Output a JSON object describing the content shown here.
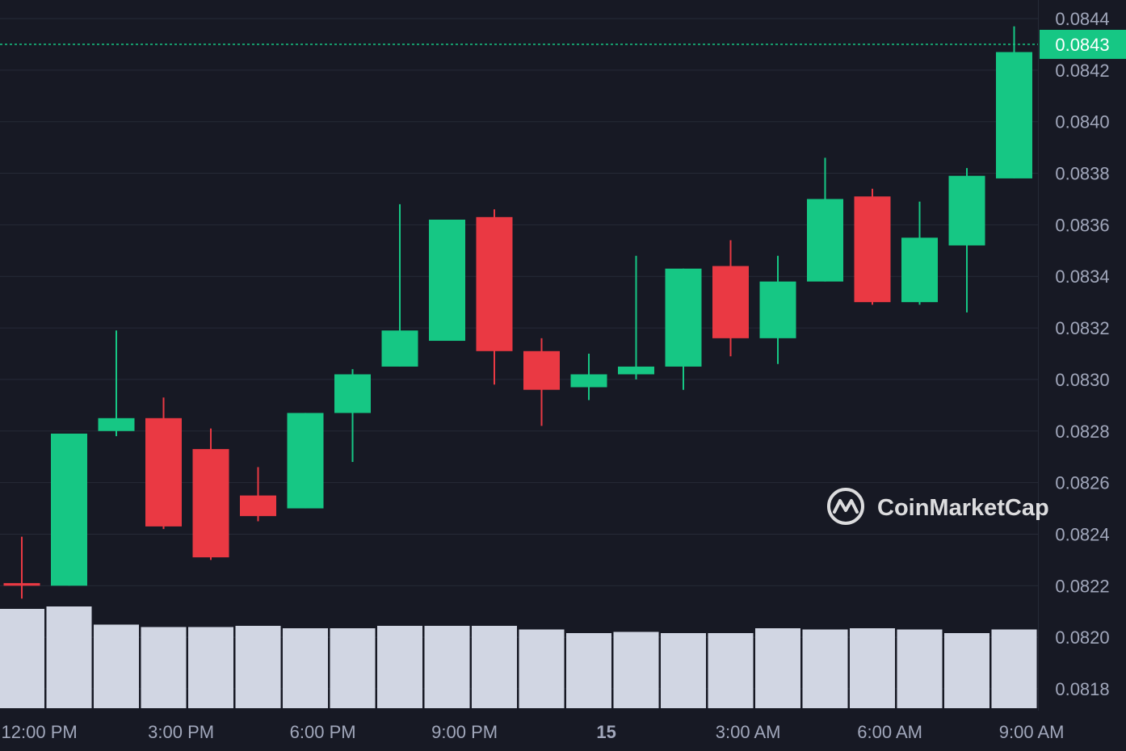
{
  "colors": {
    "background": "#171924",
    "grid": "#262a37",
    "up": "#16c784",
    "down": "#ea3943",
    "volume": "#d1d6e3",
    "axis_text": "#a1a7bb",
    "current_price_line": "#16c784"
  },
  "watermark": {
    "text": "CoinMarketCap",
    "icon": "coinmarketcap-logo-icon"
  },
  "current_price": {
    "label": "0.0843",
    "value": 0.0843
  },
  "chart_data": {
    "type": "candlestick",
    "title": "",
    "xlabel": "",
    "ylabel": "",
    "ylim": [
      0.0817,
      0.08446
    ],
    "y_ticks": [
      "0.0844",
      "0.0842",
      "0.0840",
      "0.0838",
      "0.0836",
      "0.0834",
      "0.0832",
      "0.0830",
      "0.0828",
      "0.0826",
      "0.0824",
      "0.0822",
      "0.0820",
      "0.0818"
    ],
    "x_ticks": [
      {
        "label": "12:00 PM",
        "bold": false,
        "at_candle": 0.37
      },
      {
        "label": "3:00 PM",
        "bold": false,
        "at_candle": 3.37
      },
      {
        "label": "6:00 PM",
        "bold": false,
        "at_candle": 6.37
      },
      {
        "label": "9:00 PM",
        "bold": false,
        "at_candle": 9.37
      },
      {
        "label": "15",
        "bold": true,
        "at_candle": 12.37
      },
      {
        "label": "3:00 AM",
        "bold": false,
        "at_candle": 15.37
      },
      {
        "label": "6:00 AM",
        "bold": false,
        "at_candle": 18.37
      },
      {
        "label": "9:00 AM",
        "bold": false,
        "at_candle": 21.37
      }
    ],
    "candles": [
      {
        "open": 0.08221,
        "high": 0.08239,
        "low": 0.08215,
        "close": 0.0822,
        "volume": 0.82
      },
      {
        "open": 0.0822,
        "high": 0.08279,
        "low": 0.0822,
        "close": 0.08279,
        "volume": 0.84
      },
      {
        "open": 0.0828,
        "high": 0.08319,
        "low": 0.08278,
        "close": 0.08285,
        "volume": 0.69
      },
      {
        "open": 0.08285,
        "high": 0.08293,
        "low": 0.08242,
        "close": 0.08243,
        "volume": 0.67
      },
      {
        "open": 0.08273,
        "high": 0.08281,
        "low": 0.0823,
        "close": 0.08231,
        "volume": 0.67
      },
      {
        "open": 0.08255,
        "high": 0.08266,
        "low": 0.08245,
        "close": 0.08247,
        "volume": 0.68
      },
      {
        "open": 0.0825,
        "high": 0.08287,
        "low": 0.0825,
        "close": 0.08287,
        "volume": 0.66
      },
      {
        "open": 0.08287,
        "high": 0.08304,
        "low": 0.08268,
        "close": 0.08302,
        "volume": 0.66
      },
      {
        "open": 0.08305,
        "high": 0.08368,
        "low": 0.08305,
        "close": 0.08319,
        "volume": 0.68
      },
      {
        "open": 0.08315,
        "high": 0.08362,
        "low": 0.08315,
        "close": 0.08362,
        "volume": 0.68
      },
      {
        "open": 0.08363,
        "high": 0.08366,
        "low": 0.08298,
        "close": 0.08311,
        "volume": 0.68
      },
      {
        "open": 0.08311,
        "high": 0.08316,
        "low": 0.08282,
        "close": 0.08296,
        "volume": 0.65
      },
      {
        "open": 0.08297,
        "high": 0.0831,
        "low": 0.08292,
        "close": 0.08302,
        "volume": 0.62
      },
      {
        "open": 0.08302,
        "high": 0.08348,
        "low": 0.083,
        "close": 0.08305,
        "volume": 0.63
      },
      {
        "open": 0.08305,
        "high": 0.08343,
        "low": 0.08296,
        "close": 0.08343,
        "volume": 0.62
      },
      {
        "open": 0.08344,
        "high": 0.08354,
        "low": 0.08309,
        "close": 0.08316,
        "volume": 0.62
      },
      {
        "open": 0.08316,
        "high": 0.08348,
        "low": 0.08306,
        "close": 0.08338,
        "volume": 0.66
      },
      {
        "open": 0.08338,
        "high": 0.08386,
        "low": 0.08338,
        "close": 0.0837,
        "volume": 0.65
      },
      {
        "open": 0.08371,
        "high": 0.08374,
        "low": 0.08329,
        "close": 0.0833,
        "volume": 0.66
      },
      {
        "open": 0.0833,
        "high": 0.08369,
        "low": 0.08329,
        "close": 0.08355,
        "volume": 0.65
      },
      {
        "open": 0.08352,
        "high": 0.08382,
        "low": 0.08326,
        "close": 0.08379,
        "volume": 0.62
      },
      {
        "open": 0.08378,
        "high": 0.08437,
        "low": 0.08378,
        "close": 0.08427,
        "volume": 0.65
      }
    ]
  }
}
